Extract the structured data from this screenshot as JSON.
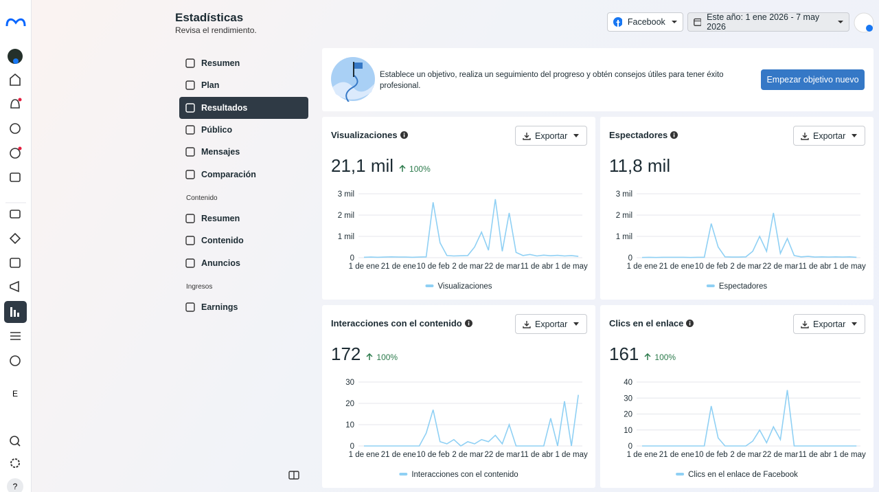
{
  "header": {
    "title": "Estadísticas",
    "subtitle": "Revisa el rendimiento.",
    "platform": "Facebook",
    "date_range": "Este año: 1 ene 2026 - 7 may 2026"
  },
  "rail": {
    "letter": "E",
    "help": "?"
  },
  "nav": {
    "items": [
      "Resumen",
      "Plan",
      "Resultados",
      "Público",
      "Mensajes",
      "Comparación"
    ],
    "sections": [
      {
        "label": "Contenido",
        "items": [
          "Resumen",
          "Contenido",
          "Anuncios"
        ]
      },
      {
        "label": "Ingresos",
        "items": [
          "Earnings"
        ]
      }
    ]
  },
  "banner": {
    "text": "Establece un objetivo, realiza un seguimiento del progreso y obtén consejos útiles para tener éxito profesional.",
    "button": "Empezar objetivo nuevo"
  },
  "cards": [
    {
      "title": "Visualizaciones",
      "export": "Exportar",
      "total": "21,1 mil",
      "change": "100%"
    },
    {
      "title": "Espectadores",
      "export": "Exportar",
      "total": "11,8 mil"
    },
    {
      "title": "Interacciones con el contenido",
      "export": "Exportar",
      "total": "172",
      "change": "100%"
    },
    {
      "title": "Clics en el enlace",
      "export": "Exportar",
      "total": "161",
      "change": "100%"
    }
  ],
  "chart_data": [
    {
      "type": "line",
      "grid": true,
      "categories": [
        "1 de ene",
        null,
        null,
        null,
        null,
        "21 de ene",
        null,
        null,
        null,
        null,
        "10 de feb",
        null,
        null,
        null,
        null,
        "2 de mar",
        null,
        null,
        null,
        null,
        "22 de mar",
        null,
        null,
        null,
        null,
        "11 de abr",
        null,
        null,
        null,
        null,
        "1 de may",
        null
      ],
      "series": [
        {
          "name": "Visualizaciones",
          "color": "#8fd0f4",
          "values": [
            20,
            30,
            20,
            30,
            40,
            30,
            30,
            20,
            30,
            40,
            2600,
            700,
            100,
            80,
            90,
            100,
            500,
            1200,
            350,
            2750,
            300,
            2100,
            250,
            100,
            150,
            80,
            120,
            90,
            110,
            80,
            100,
            60
          ]
        }
      ],
      "ylim": [
        0,
        3000
      ],
      "yticks": [
        0,
        {
          "value": 1000,
          "label": "1 mil"
        },
        {
          "value": 2000,
          "label": "2 mil"
        },
        {
          "value": 3000,
          "label": "3 mil"
        }
      ]
    },
    {
      "type": "line",
      "grid": true,
      "categories": [
        "1 de ene",
        null,
        null,
        null,
        null,
        "21 de ene",
        null,
        null,
        null,
        null,
        "10 de feb",
        null,
        null,
        null,
        null,
        "2 de mar",
        null,
        null,
        null,
        null,
        "22 de mar",
        null,
        null,
        null,
        null,
        "11 de abr",
        null,
        null,
        null,
        null,
        "1 de may",
        null
      ],
      "series": [
        {
          "name": "Espectadores",
          "color": "#8fd0f4",
          "values": [
            10,
            20,
            10,
            20,
            20,
            20,
            20,
            10,
            20,
            20,
            1600,
            500,
            40,
            30,
            30,
            40,
            300,
            1000,
            300,
            2100,
            200,
            900,
            100,
            40,
            60,
            30,
            40,
            30,
            40,
            30,
            40,
            20
          ]
        }
      ],
      "ylim": [
        0,
        3000
      ],
      "yticks": [
        0,
        {
          "value": 1000,
          "label": "1 mil"
        },
        {
          "value": 2000,
          "label": "2 mil"
        },
        {
          "value": 3000,
          "label": "3 mil"
        }
      ]
    },
    {
      "type": "line",
      "grid": true,
      "categories": [
        "1 de ene",
        null,
        null,
        null,
        null,
        "21 de ene",
        null,
        null,
        null,
        null,
        "10 de feb",
        null,
        null,
        null,
        null,
        "2 de mar",
        null,
        null,
        null,
        null,
        "22 de mar",
        null,
        null,
        null,
        null,
        "11 de abr",
        null,
        null,
        null,
        null,
        "1 de may",
        null
      ],
      "series": [
        {
          "name": "Interacciones con el contenido",
          "color": "#8fd0f4",
          "values": [
            0,
            0,
            0,
            0,
            0,
            0,
            0,
            0,
            0,
            6,
            17,
            2,
            1,
            3,
            0,
            2,
            1,
            3,
            2,
            5,
            1,
            10,
            0,
            0,
            0,
            0,
            0,
            13,
            0,
            21,
            0,
            24
          ]
        }
      ],
      "ylim": [
        0,
        30
      ],
      "yticks": [
        0,
        10,
        20,
        30
      ]
    },
    {
      "type": "line",
      "grid": true,
      "categories": [
        "1 de ene",
        null,
        null,
        null,
        null,
        "21 de ene",
        null,
        null,
        null,
        null,
        "10 de feb",
        null,
        null,
        null,
        null,
        "2 de mar",
        null,
        null,
        null,
        null,
        "22 de mar",
        null,
        null,
        null,
        null,
        "11 de abr",
        null,
        null,
        null,
        null,
        "1 de may",
        null
      ],
      "series": [
        {
          "name": "Clics en el enlace de Facebook",
          "color": "#8fd0f4",
          "values": [
            0,
            0,
            0,
            0,
            0,
            0,
            0,
            0,
            0,
            0,
            25,
            5,
            0,
            0,
            0,
            0,
            3,
            10,
            2,
            12,
            4,
            35,
            0,
            0,
            0,
            0,
            0,
            0,
            0,
            0,
            0,
            0
          ]
        }
      ],
      "ylim": [
        0,
        40
      ],
      "yticks": [
        0,
        10,
        20,
        30,
        40
      ]
    }
  ]
}
